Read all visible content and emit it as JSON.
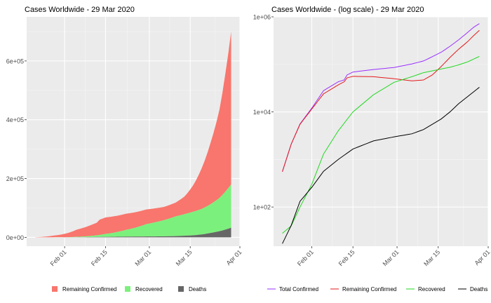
{
  "chart_data": [
    {
      "type": "area",
      "title": "Cases Worldwide - 29 Mar 2020",
      "xlabel": "",
      "ylabel": "",
      "stacked": true,
      "x_start": "2020-01-22",
      "x_end": "2020-03-29",
      "xlim": [
        "2020-01-19",
        "2020-04-01"
      ],
      "ylim": [
        -30000,
        750000
      ],
      "x_ticks": [
        "Feb 01",
        "Feb 15",
        "Mar 01",
        "Mar 15",
        "Apr 01"
      ],
      "y_ticks": [
        "0e+00",
        "2e+05",
        "4e+05",
        "6e+05"
      ],
      "grid": true,
      "legend": "bottom",
      "series": [
        {
          "name": "Remaining Confirmed",
          "color": "#f8766d",
          "knots": [
            [
              "2020-01-22",
              555
            ],
            [
              "2020-01-25",
              2100
            ],
            [
              "2020-01-28",
              5500
            ],
            [
              "2020-02-01",
              11500
            ],
            [
              "2020-02-05",
              24000
            ],
            [
              "2020-02-10",
              37000
            ],
            [
              "2020-02-12",
              43000
            ],
            [
              "2020-02-13",
              52000
            ],
            [
              "2020-02-15",
              56000
            ],
            [
              "2020-02-22",
              55000
            ],
            [
              "2020-02-29",
              50000
            ],
            [
              "2020-03-06",
              45000
            ],
            [
              "2020-03-10",
              47000
            ],
            [
              "2020-03-13",
              60000
            ],
            [
              "2020-03-16",
              90000
            ],
            [
              "2020-03-19",
              140000
            ],
            [
              "2020-03-22",
              210000
            ],
            [
              "2020-03-25",
              300000
            ],
            [
              "2020-03-27",
              400000
            ],
            [
              "2020-03-29",
              520000
            ]
          ]
        },
        {
          "name": "Recovered",
          "color": "#7cf07c",
          "knots": [
            [
              "2020-01-22",
              28
            ],
            [
              "2020-01-25",
              40
            ],
            [
              "2020-01-28",
              100
            ],
            [
              "2020-02-01",
              300
            ],
            [
              "2020-02-05",
              1300
            ],
            [
              "2020-02-10",
              4000
            ],
            [
              "2020-02-15",
              10000
            ],
            [
              "2020-02-22",
              23000
            ],
            [
              "2020-02-29",
              42000
            ],
            [
              "2020-03-06",
              55000
            ],
            [
              "2020-03-10",
              67000
            ],
            [
              "2020-03-16",
              80000
            ],
            [
              "2020-03-19",
              87000
            ],
            [
              "2020-03-22",
              98000
            ],
            [
              "2020-03-25",
              113000
            ],
            [
              "2020-03-29",
              147000
            ]
          ]
        },
        {
          "name": "Deaths",
          "color": "#666666",
          "knots": [
            [
              "2020-01-22",
              17
            ],
            [
              "2020-01-25",
              41
            ],
            [
              "2020-01-28",
              132
            ],
            [
              "2020-02-01",
              259
            ],
            [
              "2020-02-05",
              564
            ],
            [
              "2020-02-10",
              1000
            ],
            [
              "2020-02-15",
              1660
            ],
            [
              "2020-02-22",
              2460
            ],
            [
              "2020-02-29",
              2990
            ],
            [
              "2020-03-06",
              3460
            ],
            [
              "2020-03-10",
              4260
            ],
            [
              "2020-03-16",
              7100
            ],
            [
              "2020-03-19",
              10000
            ],
            [
              "2020-03-22",
              15000
            ],
            [
              "2020-03-25",
              21000
            ],
            [
              "2020-03-29",
              33000
            ]
          ]
        }
      ]
    },
    {
      "type": "line",
      "title": "Cases Worldwide - (log scale) - 29 Mar 2020",
      "xlabel": "",
      "ylabel": "",
      "y_scale": "log",
      "xlim": [
        "2020-01-19",
        "2020-04-01"
      ],
      "ylim": [
        15,
        1000000
      ],
      "x_ticks": [
        "Feb 01",
        "Feb 15",
        "Mar 01",
        "Mar 15",
        "Apr 01"
      ],
      "y_ticks": [
        "1e+02",
        "1e+04",
        "1e+06"
      ],
      "grid": true,
      "legend": "bottom",
      "series": [
        {
          "name": "Total Confirmed",
          "color": "#9b30ff",
          "knots": [
            [
              "2020-01-22",
              555
            ],
            [
              "2020-01-25",
              2100
            ],
            [
              "2020-01-28",
              5600
            ],
            [
              "2020-02-01",
              12000
            ],
            [
              "2020-02-05",
              28000
            ],
            [
              "2020-02-10",
              43000
            ],
            [
              "2020-02-12",
              47000
            ],
            [
              "2020-02-13",
              60000
            ],
            [
              "2020-02-15",
              69000
            ],
            [
              "2020-02-22",
              78000
            ],
            [
              "2020-02-29",
              86000
            ],
            [
              "2020-03-06",
              102000
            ],
            [
              "2020-03-10",
              118000
            ],
            [
              "2020-03-13",
              145000
            ],
            [
              "2020-03-16",
              180000
            ],
            [
              "2020-03-19",
              240000
            ],
            [
              "2020-03-22",
              330000
            ],
            [
              "2020-03-25",
              470000
            ],
            [
              "2020-03-27",
              600000
            ],
            [
              "2020-03-29",
              720000
            ]
          ]
        },
        {
          "name": "Remaining Confirmed",
          "color": "#e31a1c",
          "knots": [
            [
              "2020-01-22",
              555
            ],
            [
              "2020-01-25",
              2100
            ],
            [
              "2020-01-28",
              5500
            ],
            [
              "2020-02-01",
              11500
            ],
            [
              "2020-02-05",
              24000
            ],
            [
              "2020-02-10",
              37000
            ],
            [
              "2020-02-12",
              43000
            ],
            [
              "2020-02-13",
              52000
            ],
            [
              "2020-02-15",
              56000
            ],
            [
              "2020-02-22",
              55000
            ],
            [
              "2020-02-29",
              50000
            ],
            [
              "2020-03-06",
              45000
            ],
            [
              "2020-03-10",
              47000
            ],
            [
              "2020-03-13",
              60000
            ],
            [
              "2020-03-16",
              90000
            ],
            [
              "2020-03-19",
              140000
            ],
            [
              "2020-03-22",
              210000
            ],
            [
              "2020-03-25",
              300000
            ],
            [
              "2020-03-27",
              400000
            ],
            [
              "2020-03-29",
              520000
            ]
          ]
        },
        {
          "name": "Recovered",
          "color": "#22d922",
          "knots": [
            [
              "2020-01-22",
              28
            ],
            [
              "2020-01-25",
              40
            ],
            [
              "2020-01-28",
              100
            ],
            [
              "2020-02-01",
              300
            ],
            [
              "2020-02-05",
              1300
            ],
            [
              "2020-02-10",
              4000
            ],
            [
              "2020-02-15",
              10000
            ],
            [
              "2020-02-22",
              23000
            ],
            [
              "2020-02-29",
              42000
            ],
            [
              "2020-03-06",
              55000
            ],
            [
              "2020-03-10",
              67000
            ],
            [
              "2020-03-16",
              80000
            ],
            [
              "2020-03-19",
              87000
            ],
            [
              "2020-03-22",
              98000
            ],
            [
              "2020-03-25",
              113000
            ],
            [
              "2020-03-29",
              147000
            ]
          ]
        },
        {
          "name": "Deaths",
          "color": "#000000",
          "knots": [
            [
              "2020-01-22",
              17
            ],
            [
              "2020-01-25",
              41
            ],
            [
              "2020-01-28",
              132
            ],
            [
              "2020-02-01",
              259
            ],
            [
              "2020-02-05",
              564
            ],
            [
              "2020-02-10",
              1000
            ],
            [
              "2020-02-15",
              1660
            ],
            [
              "2020-02-22",
              2460
            ],
            [
              "2020-02-29",
              2990
            ],
            [
              "2020-03-06",
              3460
            ],
            [
              "2020-03-10",
              4260
            ],
            [
              "2020-03-16",
              7100
            ],
            [
              "2020-03-19",
              10000
            ],
            [
              "2020-03-22",
              15000
            ],
            [
              "2020-03-25",
              21000
            ],
            [
              "2020-03-29",
              33000
            ]
          ]
        }
      ]
    }
  ]
}
